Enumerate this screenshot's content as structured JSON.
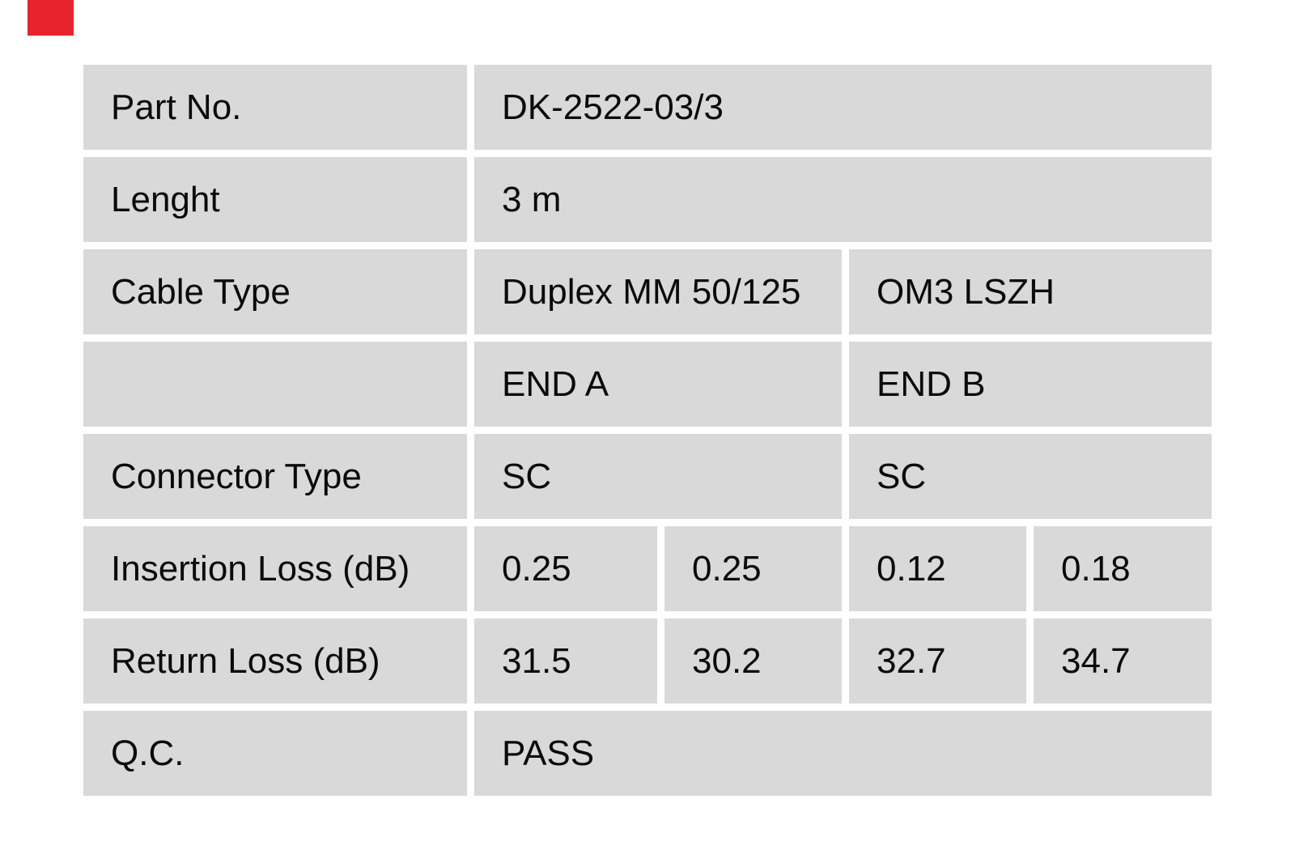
{
  "page": {
    "background_color": "#ffffff",
    "cell_color": "#d9d9d9",
    "text_color": "#0a0a0a",
    "brand_mark_color": "#e8232b"
  },
  "table": {
    "part_no": {
      "label": "Part No.",
      "value": "DK-2522-03/3"
    },
    "length": {
      "label": "Lenght",
      "value": "3 m"
    },
    "cable_type": {
      "label": "Cable Type",
      "value_a": "Duplex MM 50/125",
      "value_b": "OM3 LSZH"
    },
    "ends": {
      "label": "",
      "end_a": "END A",
      "end_b": "END B"
    },
    "connector_type": {
      "label": "Connector Type",
      "value_a": "SC",
      "value_b": "SC"
    },
    "insertion_loss": {
      "label": "Insertion Loss (dB)",
      "values": [
        "0.25",
        "0.25",
        "0.12",
        "0.18"
      ]
    },
    "return_loss": {
      "label": "Return Loss (dB)",
      "values": [
        "31.5",
        "30.2",
        "32.7",
        "34.7"
      ]
    },
    "qc": {
      "label": "Q.C.",
      "value": "PASS"
    }
  }
}
